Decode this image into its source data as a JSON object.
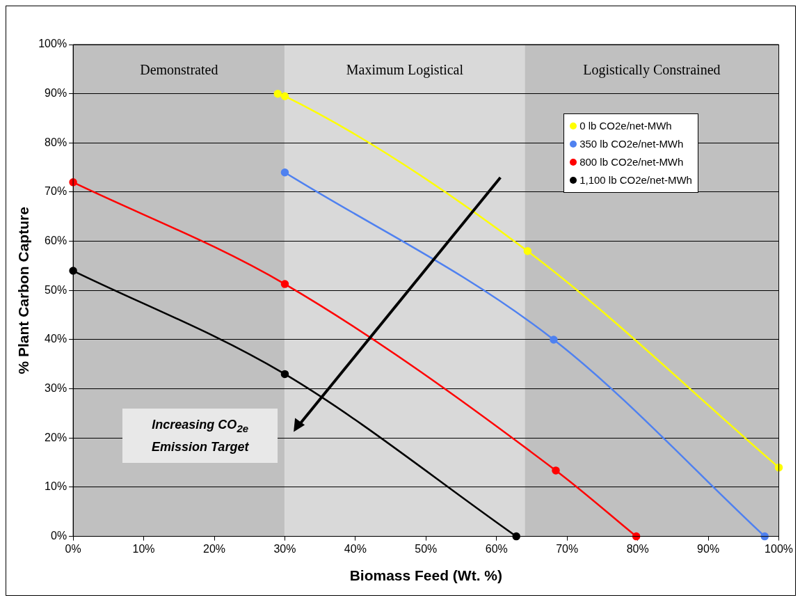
{
  "chart_data": {
    "type": "line",
    "xlabel": "Biomass Feed (Wt. %)",
    "ylabel": "% Plant Carbon Capture",
    "xlim": [
      0,
      100
    ],
    "ylim": [
      0,
      100
    ],
    "xticks": [
      {
        "value": 0,
        "label": "0%"
      },
      {
        "value": 10,
        "label": "10%"
      },
      {
        "value": 20,
        "label": "20%"
      },
      {
        "value": 30,
        "label": "30%"
      },
      {
        "value": 40,
        "label": "40%"
      },
      {
        "value": 50,
        "label": "50%"
      },
      {
        "value": 60,
        "label": "60%"
      },
      {
        "value": 70,
        "label": "70%"
      },
      {
        "value": 80,
        "label": "80%"
      },
      {
        "value": 90,
        "label": "90%"
      },
      {
        "value": 100,
        "label": "100%"
      }
    ],
    "yticks": [
      {
        "value": 0,
        "label": "0%"
      },
      {
        "value": 10,
        "label": "10%"
      },
      {
        "value": 20,
        "label": "20%"
      },
      {
        "value": 30,
        "label": "30%"
      },
      {
        "value": 40,
        "label": "40%"
      },
      {
        "value": 50,
        "label": "50%"
      },
      {
        "value": 60,
        "label": "60%"
      },
      {
        "value": 70,
        "label": "70%"
      },
      {
        "value": 80,
        "label": "80%"
      },
      {
        "value": 90,
        "label": "90%"
      },
      {
        "value": 100,
        "label": "100%"
      }
    ],
    "grid": "y",
    "legend": "top right",
    "marker": "circle",
    "line_style": "solid",
    "bands": [
      {
        "axis": "x",
        "from": 0,
        "to": 30,
        "label": "Demonstrated",
        "color": "#c0c0c0"
      },
      {
        "axis": "x",
        "from": 30,
        "to": 64,
        "label": "Maximum Logistical",
        "color": "#d9d9d9"
      },
      {
        "axis": "x",
        "from": 64,
        "to": 100,
        "label": "Logistically Constrained",
        "color": "#c0c0c0"
      }
    ],
    "series": [
      {
        "name": "0 lb CO2e/net-MWh",
        "color": "#ffff00",
        "x": [
          29,
          30,
          64.4,
          100
        ],
        "values": [
          90,
          89.5,
          58,
          14
        ]
      },
      {
        "name": "350 lb CO2e/net-MWh",
        "color": "#4f81f0",
        "x": [
          30,
          68.1,
          98
        ],
        "values": [
          74,
          40,
          0
        ]
      },
      {
        "name": "800 lb CO2e/net-MWh",
        "color": "#ff0000",
        "x": [
          0,
          30,
          68.4,
          79.8
        ],
        "values": [
          72,
          51.3,
          13.4,
          0
        ]
      },
      {
        "name": "1,100 lb CO2e/net-MWh",
        "color": "#000000",
        "x": [
          0,
          30,
          62.8
        ],
        "values": [
          54,
          33,
          0
        ]
      }
    ],
    "annotations": [
      "Increasing CO$_{2e}$ Emission Target"
    ]
  }
}
